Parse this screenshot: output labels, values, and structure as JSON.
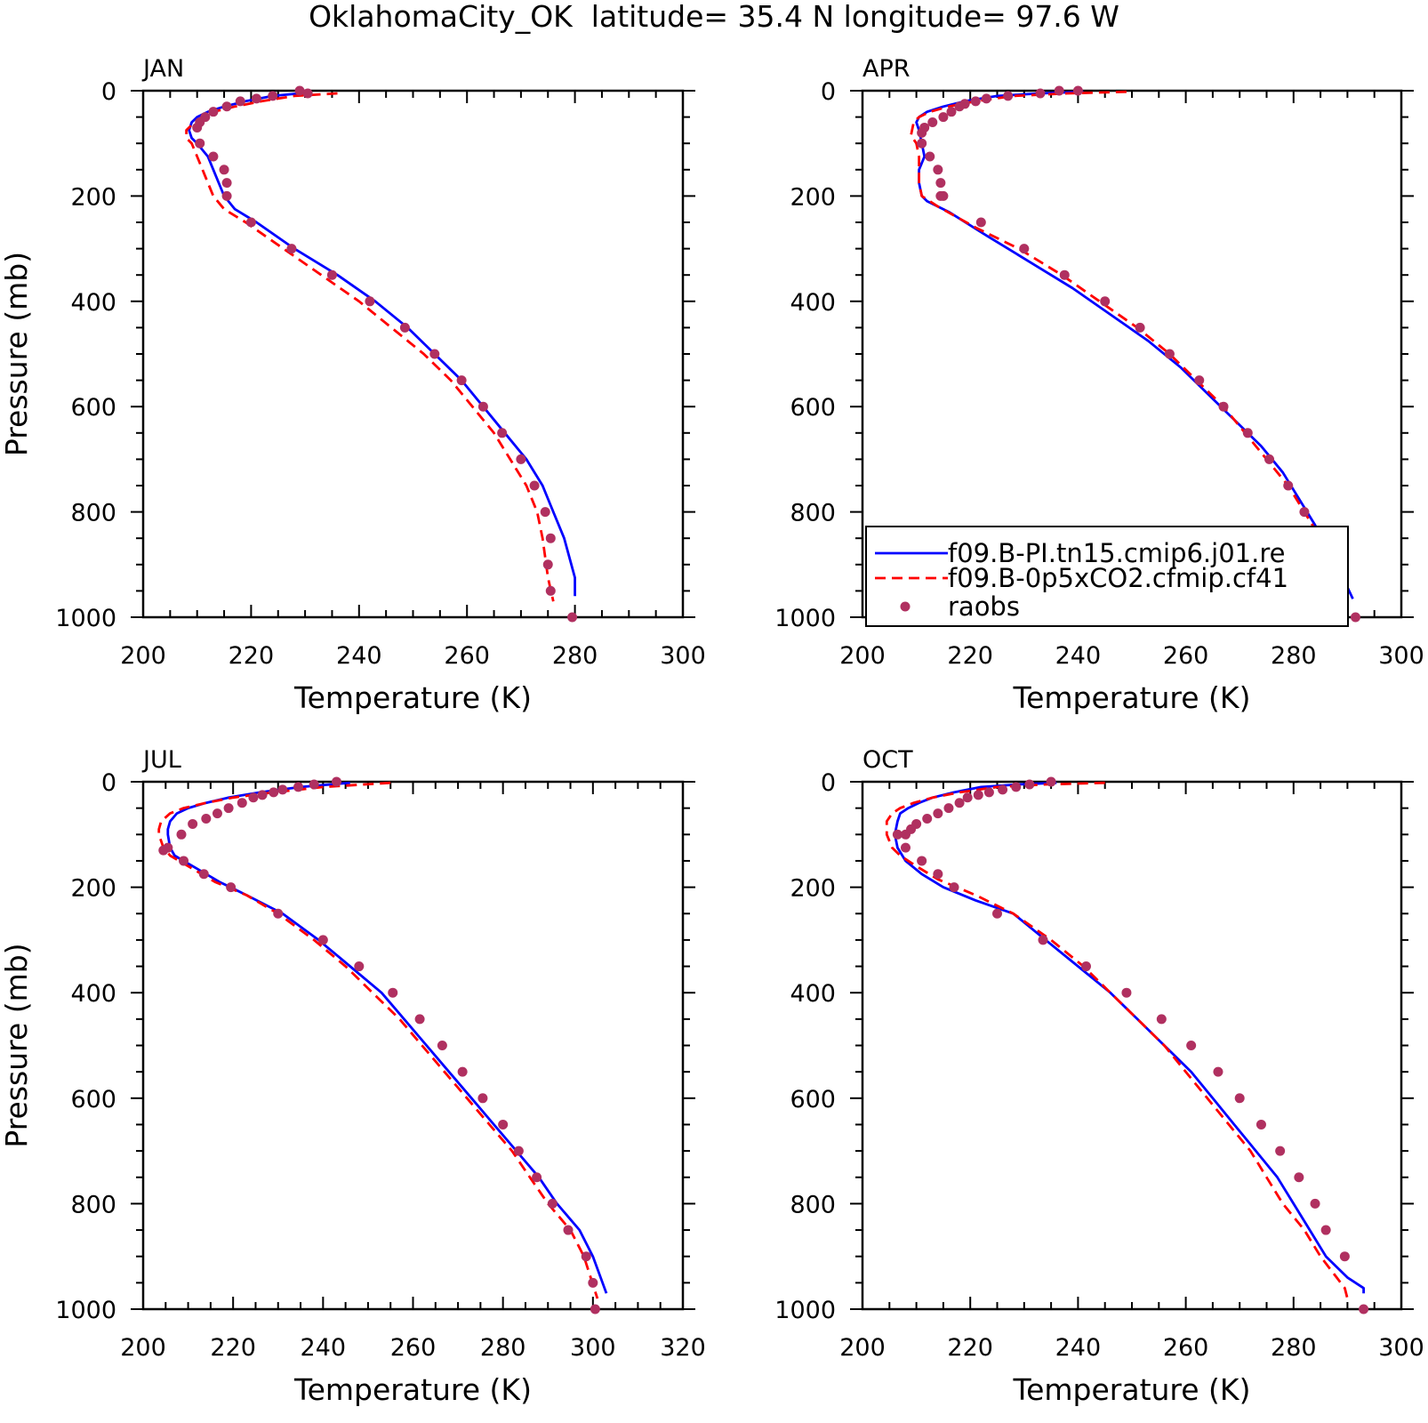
{
  "title": "OklahomaCity_OK  latitude= 35.4 N longitude= 97.6 W",
  "legend": {
    "entries": [
      {
        "label": "f09.B-PI.tn15.cmip6.j01.re",
        "color": "#0000ff",
        "style": "solid"
      },
      {
        "label": "f09.B-0p5xCO2.cfmip.cf41",
        "color": "#ff0000",
        "style": "dashed"
      },
      {
        "label": "raobs",
        "color": "#b03060",
        "style": "marker"
      }
    ]
  },
  "chart_data": [
    {
      "type": "line",
      "panel_label": "JAN",
      "xlabel": "Temperature (K)",
      "ylabel": "Pressure (mb)",
      "xlim": [
        200,
        300
      ],
      "xticks": [
        200,
        220,
        240,
        260,
        280,
        300
      ],
      "ylim": [
        1000,
        0
      ],
      "yticks": [
        0,
        200,
        400,
        600,
        800,
        1000
      ],
      "series": [
        {
          "name": "f09.B-PI.tn15.cmip6.j01.re",
          "color": "#0000ff",
          "x": [
            229,
            224,
            219,
            215,
            212,
            210,
            209,
            208.5,
            209,
            210,
            212,
            213,
            214,
            215,
            217,
            221,
            228,
            236,
            243,
            249,
            254,
            259,
            263,
            267,
            271,
            274,
            276,
            278,
            280,
            280
          ],
          "y": [
            5,
            10,
            20,
            30,
            40,
            50,
            60,
            75,
            90,
            100,
            125,
            150,
            175,
            200,
            225,
            250,
            300,
            350,
            400,
            450,
            500,
            550,
            600,
            650,
            700,
            750,
            800,
            850,
            925,
            960
          ]
        },
        {
          "name": "f09.B-0p5xCO2.cfmip.cf41",
          "color": "#ff0000",
          "x": [
            236,
            228,
            222,
            217,
            213,
            211,
            209.5,
            208,
            208,
            209,
            210,
            211,
            212,
            213,
            215,
            219,
            226,
            233,
            240,
            246,
            252,
            257,
            261,
            265,
            268,
            271,
            273,
            274,
            275,
            276
          ],
          "y": [
            5,
            10,
            20,
            30,
            40,
            50,
            60,
            75,
            90,
            100,
            125,
            150,
            175,
            200,
            225,
            250,
            300,
            350,
            400,
            450,
            500,
            550,
            600,
            650,
            700,
            750,
            800,
            850,
            925,
            970
          ]
        },
        {
          "name": "raobs",
          "color": "#b03060",
          "x": [
            229,
            230.5,
            224,
            221,
            218,
            215.5,
            213,
            211.5,
            210.5,
            210,
            210.5,
            213,
            215,
            215.5,
            215.5,
            220,
            227.5,
            235,
            242,
            248.5,
            254,
            259,
            263,
            266.5,
            270,
            272.5,
            274.5,
            275.5,
            275,
            275.5,
            279.5
          ],
          "y": [
            0,
            5,
            10,
            15,
            20,
            30,
            40,
            50,
            60,
            70,
            100,
            125,
            150,
            175,
            200,
            250,
            300,
            350,
            400,
            450,
            500,
            550,
            600,
            650,
            700,
            750,
            800,
            850,
            900,
            950,
            1000
          ]
        }
      ]
    },
    {
      "type": "line",
      "panel_label": "APR",
      "xlabel": "Temperature (K)",
      "ylabel": "",
      "xlim": [
        200,
        300
      ],
      "xticks": [
        200,
        220,
        240,
        260,
        280,
        300
      ],
      "ylim": [
        1000,
        0
      ],
      "yticks": [
        0,
        200,
        400,
        600,
        800,
        1000
      ],
      "series": [
        {
          "name": "f09.B-PI.tn15.cmip6.j01.re",
          "color": "#0000ff",
          "x": [
            241,
            233,
            225,
            219,
            215,
            212,
            210.5,
            210,
            210.5,
            211,
            211.5,
            210.5,
            210.5,
            211,
            212,
            216,
            223,
            231,
            239,
            246,
            253,
            259,
            264,
            269,
            274,
            278,
            281,
            284,
            288,
            291
          ],
          "y": [
            2,
            5,
            10,
            20,
            30,
            40,
            50,
            60,
            75,
            100,
            125,
            150,
            175,
            200,
            210,
            230,
            275,
            325,
            375,
            425,
            475,
            525,
            575,
            625,
            675,
            725,
            775,
            825,
            900,
            965
          ]
        },
        {
          "name": "f09.B-0p5xCO2.cfmip.cf41",
          "color": "#ff0000",
          "x": [
            249,
            238,
            228,
            221,
            216,
            212.5,
            210.5,
            209.5,
            209,
            210,
            210.5,
            210.5,
            210.5,
            211,
            214,
            221,
            229,
            237,
            244,
            251,
            257,
            262,
            267,
            271,
            275,
            279,
            282,
            285,
            288,
            289
          ],
          "y": [
            2,
            5,
            10,
            20,
            30,
            40,
            50,
            60,
            85,
            100,
            125,
            150,
            175,
            200,
            220,
            260,
            300,
            350,
            400,
            450,
            500,
            550,
            600,
            650,
            700,
            750,
            800,
            850,
            930,
            975
          ]
        },
        {
          "name": "raobs",
          "color": "#b03060",
          "x": [
            240,
            236.5,
            233,
            227,
            223,
            221,
            219,
            218,
            216.5,
            215,
            213,
            211.5,
            211,
            211,
            212.5,
            214,
            214.5,
            214.5,
            215,
            222,
            230,
            237.5,
            245,
            251.5,
            257,
            262.5,
            267,
            271.5,
            275.5,
            279,
            282,
            284.5,
            286.5,
            289,
            291.5
          ],
          "y": [
            0,
            0,
            5,
            10,
            15,
            20,
            25,
            30,
            40,
            50,
            60,
            70,
            80,
            100,
            125,
            150,
            175,
            200,
            200,
            250,
            300,
            350,
            400,
            450,
            500,
            550,
            600,
            650,
            700,
            750,
            800,
            850,
            900,
            950,
            1000
          ]
        }
      ]
    },
    {
      "type": "line",
      "panel_label": "JUL",
      "xlabel": "Temperature (K)",
      "ylabel": "Pressure (mb)",
      "xlim": [
        200,
        320
      ],
      "xticks": [
        200,
        220,
        240,
        260,
        280,
        300,
        320
      ],
      "ylim": [
        1000,
        0
      ],
      "yticks": [
        0,
        200,
        400,
        600,
        800,
        1000
      ],
      "series": [
        {
          "name": "f09.B-PI.tn15.cmip6.j01.re",
          "color": "#0000ff",
          "x": [
            246,
            235,
            226,
            219,
            214,
            210,
            207.5,
            206,
            205.5,
            205.5,
            206,
            207,
            209,
            212,
            217,
            223,
            231,
            239,
            246,
            253,
            258,
            263,
            268,
            273,
            278,
            283,
            288,
            292,
            297,
            300,
            303
          ],
          "y": [
            2,
            10,
            20,
            30,
            40,
            50,
            60,
            75,
            90,
            100,
            125,
            140,
            150,
            165,
            190,
            215,
            250,
            300,
            350,
            400,
            450,
            500,
            550,
            600,
            650,
            700,
            750,
            800,
            850,
            900,
            970
          ]
        },
        {
          "name": "f09.B-0p5xCO2.cfmip.cf41",
          "color": "#ff0000",
          "x": [
            255,
            240,
            229,
            220,
            214,
            209,
            206,
            204,
            203.5,
            203.5,
            204.5,
            206,
            208,
            211,
            216,
            223,
            230,
            238,
            245,
            251,
            257,
            262,
            267,
            272,
            277,
            282,
            286,
            290,
            295,
            298,
            301
          ],
          "y": [
            2,
            10,
            20,
            30,
            40,
            50,
            60,
            75,
            90,
            100,
            125,
            140,
            150,
            165,
            190,
            215,
            250,
            300,
            350,
            400,
            450,
            500,
            550,
            600,
            650,
            700,
            750,
            800,
            850,
            900,
            980
          ]
        },
        {
          "name": "raobs",
          "color": "#b03060",
          "x": [
            243,
            238,
            234.5,
            231,
            229,
            226.5,
            224.5,
            222,
            219,
            216.5,
            214,
            211,
            208.5,
            205.5,
            204.5,
            209,
            213.5,
            219.5,
            230,
            240,
            248,
            255.5,
            261.5,
            266.5,
            271,
            275.5,
            280,
            283.5,
            287.5,
            291,
            294.5,
            298.5,
            300,
            300.5
          ],
          "y": [
            0,
            5,
            10,
            15,
            20,
            25,
            30,
            40,
            50,
            60,
            70,
            80,
            100,
            125,
            130,
            150,
            175,
            200,
            250,
            300,
            350,
            400,
            450,
            500,
            550,
            600,
            650,
            700,
            750,
            800,
            850,
            900,
            950,
            1000
          ]
        }
      ]
    },
    {
      "type": "line",
      "panel_label": "OCT",
      "xlabel": "Temperature (K)",
      "ylabel": "",
      "xlim": [
        200,
        300
      ],
      "xticks": [
        200,
        220,
        240,
        260,
        280,
        300
      ],
      "ylim": [
        1000,
        0
      ],
      "yticks": [
        0,
        200,
        400,
        600,
        800,
        1000
      ],
      "series": [
        {
          "name": "f09.B-PI.tn15.cmip6.j01.re",
          "color": "#0000ff",
          "x": [
            236,
            229,
            222,
            217,
            213,
            210.5,
            208.5,
            207,
            206.5,
            206,
            206.5,
            208,
            211,
            215,
            221,
            228,
            234,
            240,
            246,
            251,
            256,
            261,
            265,
            269,
            273,
            277,
            280,
            283,
            286,
            290,
            293,
            293
          ],
          "y": [
            2,
            5,
            10,
            20,
            30,
            40,
            50,
            60,
            75,
            100,
            125,
            150,
            175,
            200,
            225,
            250,
            300,
            350,
            400,
            450,
            500,
            550,
            600,
            650,
            700,
            750,
            800,
            850,
            900,
            940,
            960,
            970
          ]
        },
        {
          "name": "f09.B-0p5xCO2.cfmip.cf41",
          "color": "#ff0000",
          "x": [
            245,
            234,
            225,
            218,
            213,
            209.5,
            207,
            205.5,
            204.5,
            204.5,
            205.5,
            207,
            210,
            214,
            221,
            228,
            235,
            241,
            246,
            251,
            256,
            260,
            264,
            268,
            272,
            275,
            278,
            282,
            285,
            288,
            289.5,
            290
          ],
          "y": [
            2,
            5,
            10,
            20,
            30,
            40,
            50,
            60,
            75,
            100,
            125,
            140,
            160,
            185,
            215,
            250,
            300,
            350,
            400,
            450,
            500,
            550,
            600,
            650,
            700,
            750,
            800,
            850,
            900,
            940,
            960,
            980
          ]
        },
        {
          "name": "raobs",
          "color": "#b03060",
          "x": [
            235,
            231,
            228.5,
            226,
            223.5,
            221.5,
            219.5,
            218,
            216,
            214,
            212,
            210,
            209,
            208,
            206.5,
            208,
            211,
            214,
            217,
            225,
            233.5,
            241.5,
            249,
            255.5,
            261,
            266,
            270,
            274,
            277.5,
            281,
            284,
            286,
            289.5,
            293
          ],
          "y": [
            0,
            5,
            10,
            15,
            20,
            25,
            30,
            40,
            50,
            60,
            70,
            80,
            90,
            100,
            100,
            125,
            150,
            175,
            200,
            250,
            300,
            350,
            400,
            450,
            500,
            550,
            600,
            650,
            700,
            750,
            800,
            850,
            900,
            1000
          ]
        }
      ]
    }
  ]
}
